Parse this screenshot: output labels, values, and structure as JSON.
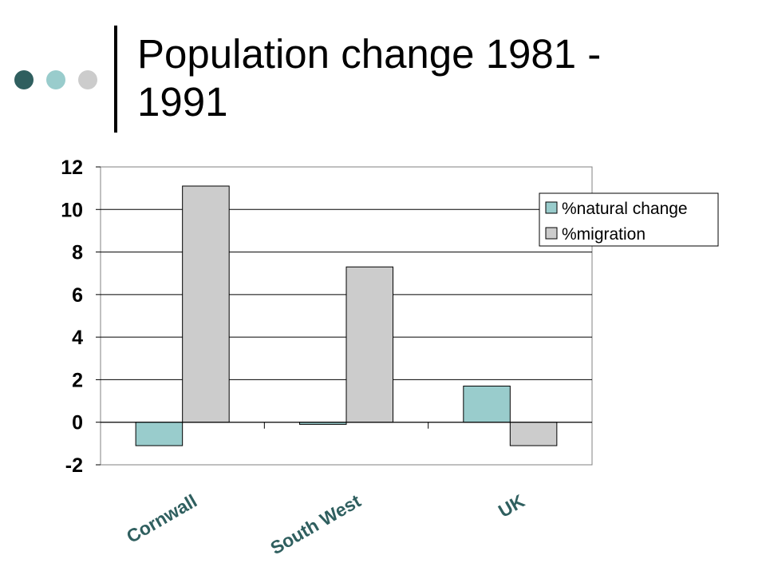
{
  "slide": {
    "title": "Population change 1981 - 1991"
  },
  "decor": {
    "dot_colors": [
      "#2f5f5f",
      "#99cccc",
      "#cccccc"
    ]
  },
  "chart_data": {
    "type": "bar",
    "title": "",
    "xlabel": "",
    "ylabel": "",
    "categories": [
      "Cornwall",
      "South West",
      "UK"
    ],
    "series": [
      {
        "name": "%natural change",
        "color": "#99cccc",
        "values": [
          -1.1,
          -0.1,
          1.7
        ]
      },
      {
        "name": "%migration",
        "color": "#cccccc",
        "values": [
          11.1,
          7.3,
          -1.1
        ]
      }
    ],
    "ylim": [
      -2,
      12
    ],
    "yticks": [
      "12",
      "10",
      "8",
      "6",
      "4",
      "2",
      "0",
      "-2"
    ],
    "grid": true,
    "legend_position": "top-right",
    "category_label_color": "#2f5f5f"
  }
}
